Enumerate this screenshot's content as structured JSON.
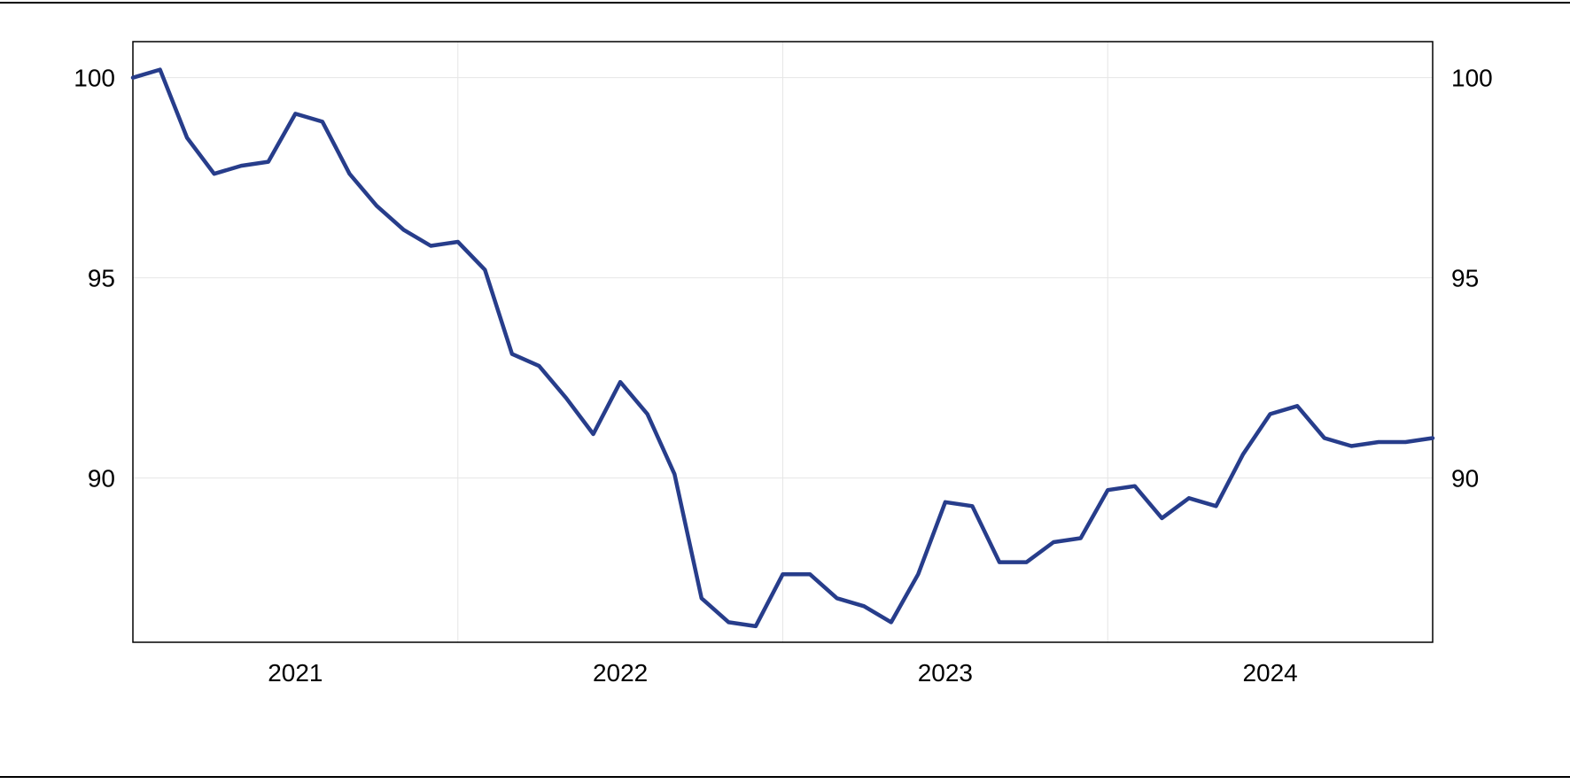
{
  "chart_data": {
    "type": "line",
    "title": "",
    "xlabel": "",
    "ylabel": "",
    "x_tick_labels": [
      "2021",
      "2022",
      "2023",
      "2024"
    ],
    "y_tick_labels": [
      "90",
      "95",
      "100"
    ],
    "y_ticks": [
      90,
      95,
      100
    ],
    "ylim": [
      85.9,
      100.9
    ],
    "xlim": [
      "2020-07",
      "2024-07"
    ],
    "grid": true,
    "right_axis_mirrors_left": true,
    "colors": {
      "series": "#273d8b",
      "grid": "#e6e6e6",
      "frame": "#000000"
    },
    "series": [
      {
        "x": [
          "2020-07",
          "2020-08",
          "2020-09",
          "2020-10",
          "2020-11",
          "2020-12",
          "2021-01",
          "2021-02",
          "2021-03",
          "2021-04",
          "2021-05",
          "2021-06",
          "2021-07",
          "2021-08",
          "2021-09",
          "2021-10",
          "2021-11",
          "2021-12",
          "2022-01",
          "2022-02",
          "2022-03",
          "2022-04",
          "2022-05",
          "2022-06",
          "2022-07",
          "2022-08",
          "2022-09",
          "2022-10",
          "2022-11",
          "2022-12",
          "2023-01",
          "2023-02",
          "2023-03",
          "2023-04",
          "2023-05",
          "2023-06",
          "2023-07",
          "2023-08",
          "2023-09",
          "2023-10",
          "2023-11",
          "2023-12",
          "2024-01",
          "2024-02",
          "2024-03",
          "2024-04",
          "2024-05",
          "2024-06",
          "2024-07"
        ],
        "values": [
          100.0,
          100.2,
          98.5,
          97.6,
          97.8,
          97.9,
          99.1,
          98.9,
          97.6,
          96.8,
          96.2,
          95.8,
          95.9,
          95.2,
          93.1,
          92.8,
          92.0,
          91.1,
          92.4,
          91.6,
          90.1,
          87.0,
          86.4,
          86.3,
          87.6,
          87.6,
          87.0,
          86.8,
          86.4,
          87.6,
          89.4,
          89.3,
          87.9,
          87.9,
          88.4,
          88.5,
          89.7,
          89.8,
          89.0,
          89.5,
          89.3,
          90.6,
          91.6,
          91.8,
          91.0,
          90.8,
          90.9,
          90.9,
          91.0
        ]
      }
    ]
  }
}
